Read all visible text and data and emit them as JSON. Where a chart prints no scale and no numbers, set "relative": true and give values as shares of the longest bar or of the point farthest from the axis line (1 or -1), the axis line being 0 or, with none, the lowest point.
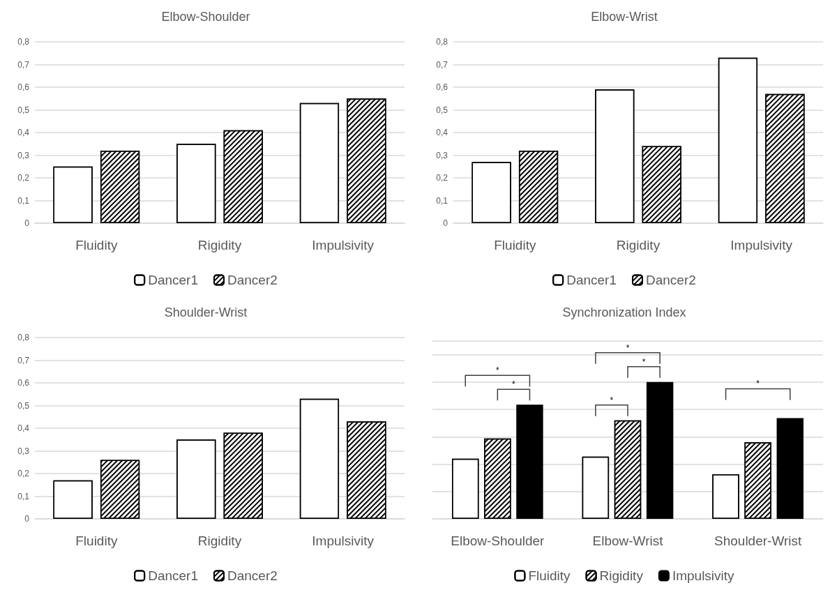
{
  "chart_data": [
    {
      "type": "bar",
      "title": "Elbow-Shoulder",
      "categories": [
        "Fluidity",
        "Rigidity",
        "Impulsivity"
      ],
      "series": [
        {
          "name": "Dancer1",
          "color": "#ffffff",
          "values": [
            0.25,
            0.35,
            0.53
          ]
        },
        {
          "name": "Dancer2",
          "color": "#ffffff",
          "values": [
            0.32,
            0.41,
            0.55
          ]
        }
      ],
      "ylim": [
        0,
        0.8
      ],
      "yticks": [
        {
          "value": 0,
          "label": "0"
        },
        {
          "value": 0.1,
          "label": "0,1"
        },
        {
          "value": 0.2,
          "label": "0,2"
        },
        {
          "value": 0.3,
          "label": "0,3"
        },
        {
          "value": 0.4,
          "label": "0,4"
        },
        {
          "value": 0.5,
          "label": "0,5"
        },
        {
          "value": 0.6,
          "label": "0,6"
        },
        {
          "value": 0.7,
          "label": "0,7"
        },
        {
          "value": 0.8,
          "label": "0,8"
        }
      ],
      "grid": "y",
      "legend": "bottom"
    },
    {
      "type": "bar",
      "title": "Elbow-Wrist",
      "categories": [
        "Fluidity",
        "Rigidity",
        "Impulsivity"
      ],
      "series": [
        {
          "name": "Dancer1",
          "color": "#ffffff",
          "values": [
            0.27,
            0.59,
            0.73
          ]
        },
        {
          "name": "Dancer2",
          "color": "#ffffff",
          "values": [
            0.32,
            0.34,
            0.57
          ]
        }
      ],
      "ylim": [
        0,
        0.8
      ],
      "yticks": [
        {
          "value": 0,
          "label": "0"
        },
        {
          "value": 0.1,
          "label": "0,1"
        },
        {
          "value": 0.2,
          "label": "0,2"
        },
        {
          "value": 0.3,
          "label": "0,3"
        },
        {
          "value": 0.4,
          "label": "0,4"
        },
        {
          "value": 0.5,
          "label": "0,5"
        },
        {
          "value": 0.6,
          "label": "0,6"
        },
        {
          "value": 0.7,
          "label": "0,7"
        },
        {
          "value": 0.8,
          "label": "0,8"
        }
      ],
      "grid": "y",
      "legend": "bottom"
    },
    {
      "type": "bar",
      "title": "Shoulder-Wrist",
      "categories": [
        "Fluidity",
        "Rigidity",
        "Impulsivity"
      ],
      "series": [
        {
          "name": "Dancer1",
          "color": "#ffffff",
          "values": [
            0.17,
            0.35,
            0.53
          ]
        },
        {
          "name": "Dancer2",
          "color": "#ffffff",
          "values": [
            0.26,
            0.38,
            0.43
          ]
        }
      ],
      "ylim": [
        0,
        0.8
      ],
      "yticks": [
        {
          "value": 0,
          "label": "0"
        },
        {
          "value": 0.1,
          "label": "0,1"
        },
        {
          "value": 0.2,
          "label": "0,2"
        },
        {
          "value": 0.3,
          "label": "0,3"
        },
        {
          "value": 0.4,
          "label": "0,4"
        },
        {
          "value": 0.5,
          "label": "0,5"
        },
        {
          "value": 0.6,
          "label": "0,6"
        },
        {
          "value": 0.7,
          "label": "0,7"
        },
        {
          "value": 0.8,
          "label": "0,8"
        }
      ],
      "grid": "y",
      "legend": "bottom"
    },
    {
      "type": "bar",
      "title": "Synchronization Index",
      "categories": [
        "Elbow-Shoulder",
        "Elbow-Wrist",
        "Shoulder-Wrist"
      ],
      "series": [
        {
          "name": "Fluidity",
          "color": "#ffffff",
          "values": [
            0.44,
            0.455,
            0.326
          ]
        },
        {
          "name": "Rigidity",
          "color": "#ffffff",
          "values": [
            0.588,
            0.72,
            0.56
          ]
        },
        {
          "name": "Impulsivity",
          "color": "#000000",
          "values": [
            0.835,
            1,
            0.737
          ]
        }
      ],
      "relative": true,
      "grid": "y",
      "legend": "bottom",
      "annotations": [
        "*",
        "*",
        "*",
        "*",
        "*",
        "*"
      ]
    }
  ]
}
